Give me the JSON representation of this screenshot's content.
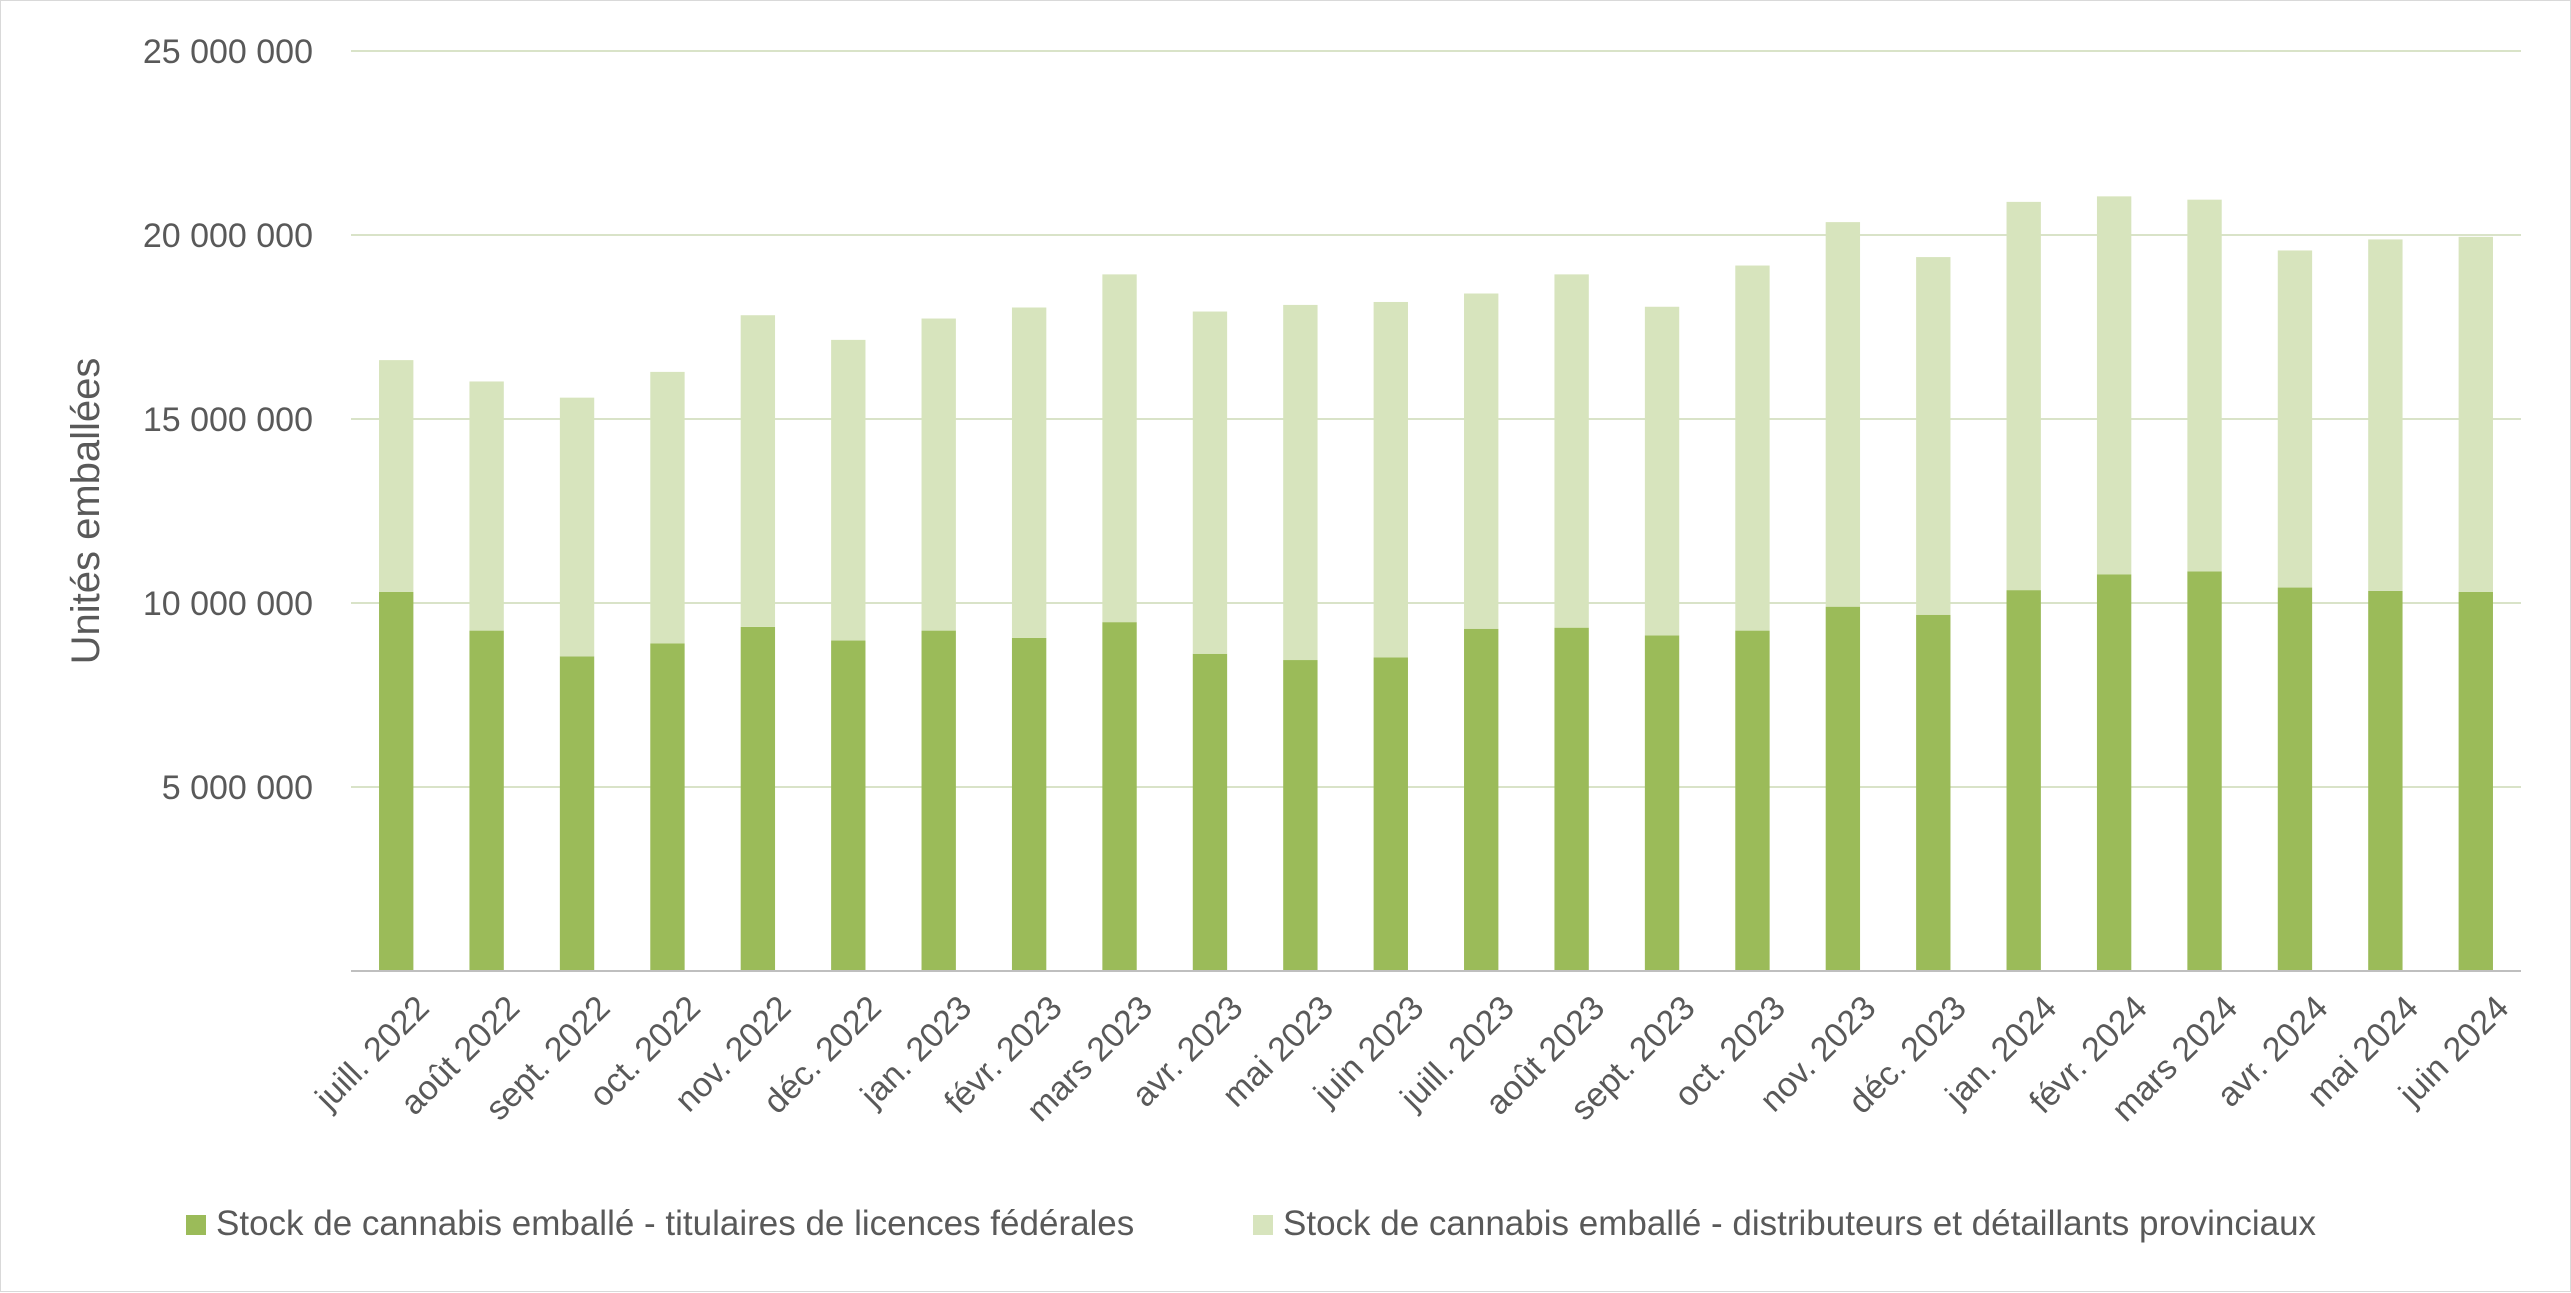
{
  "chart_data": {
    "type": "bar",
    "stacked": true,
    "title": "",
    "xlabel": "",
    "ylabel": "Unités emballées",
    "ylim": [
      0,
      25000000
    ],
    "y_ticks": [
      {
        "value": 5000000,
        "label": "5 000 000"
      },
      {
        "value": 10000000,
        "label": "10 000 000"
      },
      {
        "value": 15000000,
        "label": "15 000 000"
      },
      {
        "value": 20000000,
        "label": "20 000 000"
      },
      {
        "value": 25000000,
        "label": "25 000 000"
      }
    ],
    "grid": true,
    "legend_position": "bottom",
    "categories": [
      "juill. 2022",
      "août 2022",
      "sept. 2022",
      "oct. 2022",
      "nov. 2022",
      "déc. 2022",
      "jan. 2023",
      "févr. 2023",
      "mars 2023",
      "avr. 2023",
      "mai 2023",
      "juin 2023",
      "juill. 2023",
      "août 2023",
      "sept. 2023",
      "oct. 2023",
      "nov. 2023",
      "déc. 2023",
      "jan. 2024",
      "févr. 2024",
      "mars 2024",
      "avr. 2024",
      "mai 2024",
      "juin 2024"
    ],
    "series": [
      {
        "name": "Stock de cannabis emballé - titulaires de licences fédérales",
        "color": "#9bbb59",
        "values": [
          10300000,
          9250000,
          8550000,
          8900000,
          9350000,
          8980000,
          9250000,
          9050000,
          9480000,
          8620000,
          8450000,
          8520000,
          9300000,
          9330000,
          9120000,
          9250000,
          9900000,
          9680000,
          10350000,
          10780000,
          10860000,
          10420000,
          10330000,
          10300000
        ]
      },
      {
        "name": "Stock de cannabis emballé - distributeurs et détaillants provinciaux",
        "color": "#d7e4bd",
        "values": [
          6300000,
          6770000,
          7030000,
          7380000,
          8470000,
          8170000,
          8480000,
          8980000,
          9450000,
          9300000,
          9650000,
          9660000,
          9110000,
          9600000,
          8930000,
          9920000,
          10450000,
          9720000,
          10550000,
          10270000,
          10100000,
          9160000,
          9550000,
          9650000
        ]
      }
    ]
  }
}
